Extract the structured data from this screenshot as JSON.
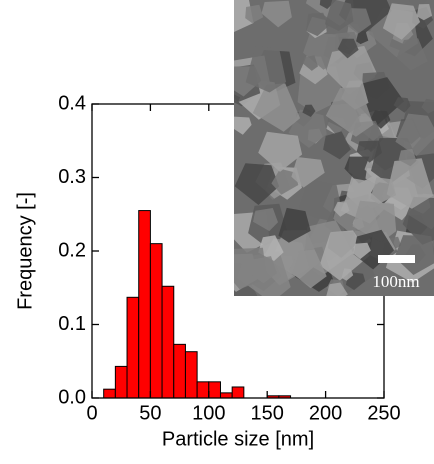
{
  "chart_data": {
    "type": "histogram",
    "xlabel": "Particle size [nm]",
    "ylabel": "Frequency [-]",
    "bins": [
      10,
      20,
      30,
      40,
      50,
      60,
      70,
      80,
      90,
      100,
      110,
      120,
      130,
      140,
      150,
      160,
      170
    ],
    "values": [
      0.012,
      0.043,
      0.137,
      0.255,
      0.21,
      0.152,
      0.073,
      0.063,
      0.022,
      0.022,
      0.007,
      0.015,
      0,
      0,
      0.003,
      0.003
    ],
    "color": "#ff0000",
    "xlim": [
      0,
      250
    ],
    "xticks": [
      0,
      50,
      100,
      150,
      200,
      250
    ],
    "ylim": [
      0,
      0.4
    ],
    "yticks": [
      {
        "value": 0,
        "label": "0.0"
      },
      0.1,
      0.2,
      0.3,
      0.4
    ],
    "inset": {
      "scale_label": "100nm"
    }
  }
}
